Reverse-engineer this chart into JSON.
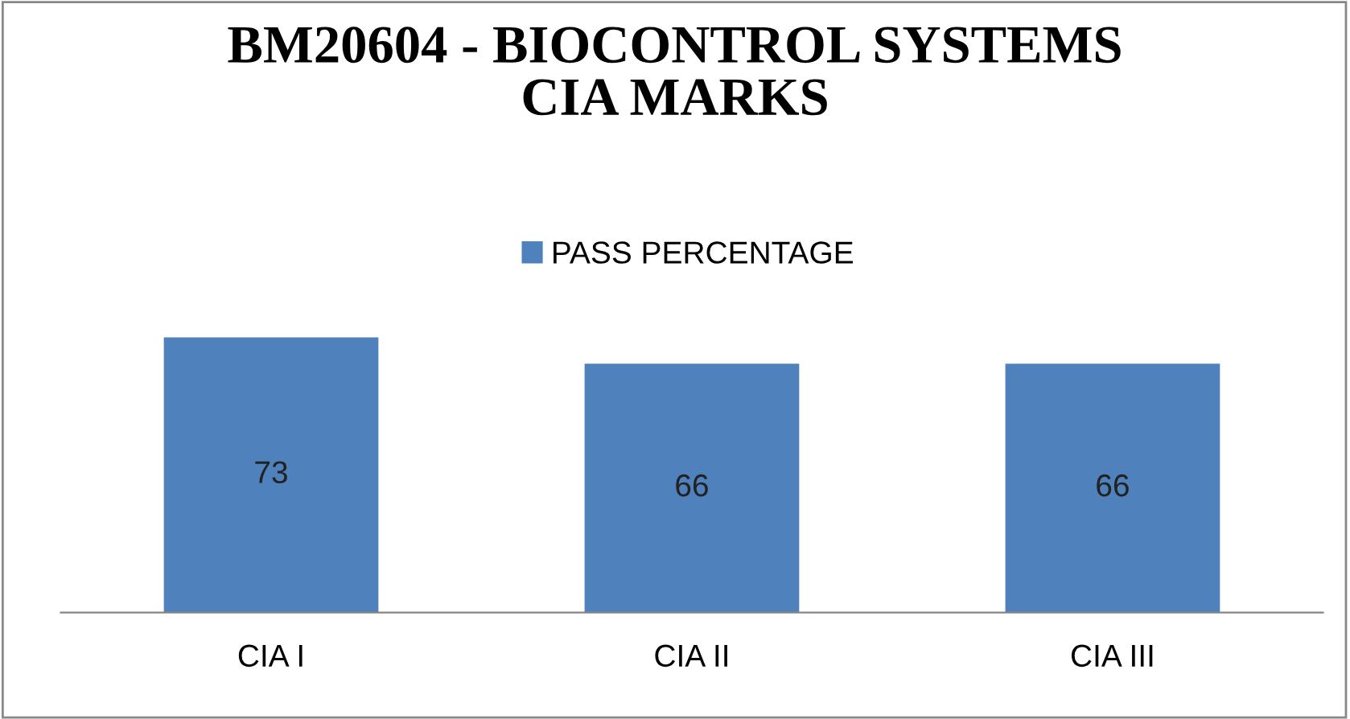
{
  "chart_data": {
    "type": "bar",
    "title": "BM20604 - BIOCONTROL SYSTEMS\nCIA MARKS",
    "categories": [
      "CIA I",
      "CIA II",
      "CIA III"
    ],
    "series": [
      {
        "name": "PASS PERCENTAGE",
        "color": "#4f81bd",
        "values": [
          73,
          66,
          66
        ]
      }
    ],
    "tick_labels": "x",
    "data_labels": true,
    "grid": false,
    "legend": "top"
  }
}
